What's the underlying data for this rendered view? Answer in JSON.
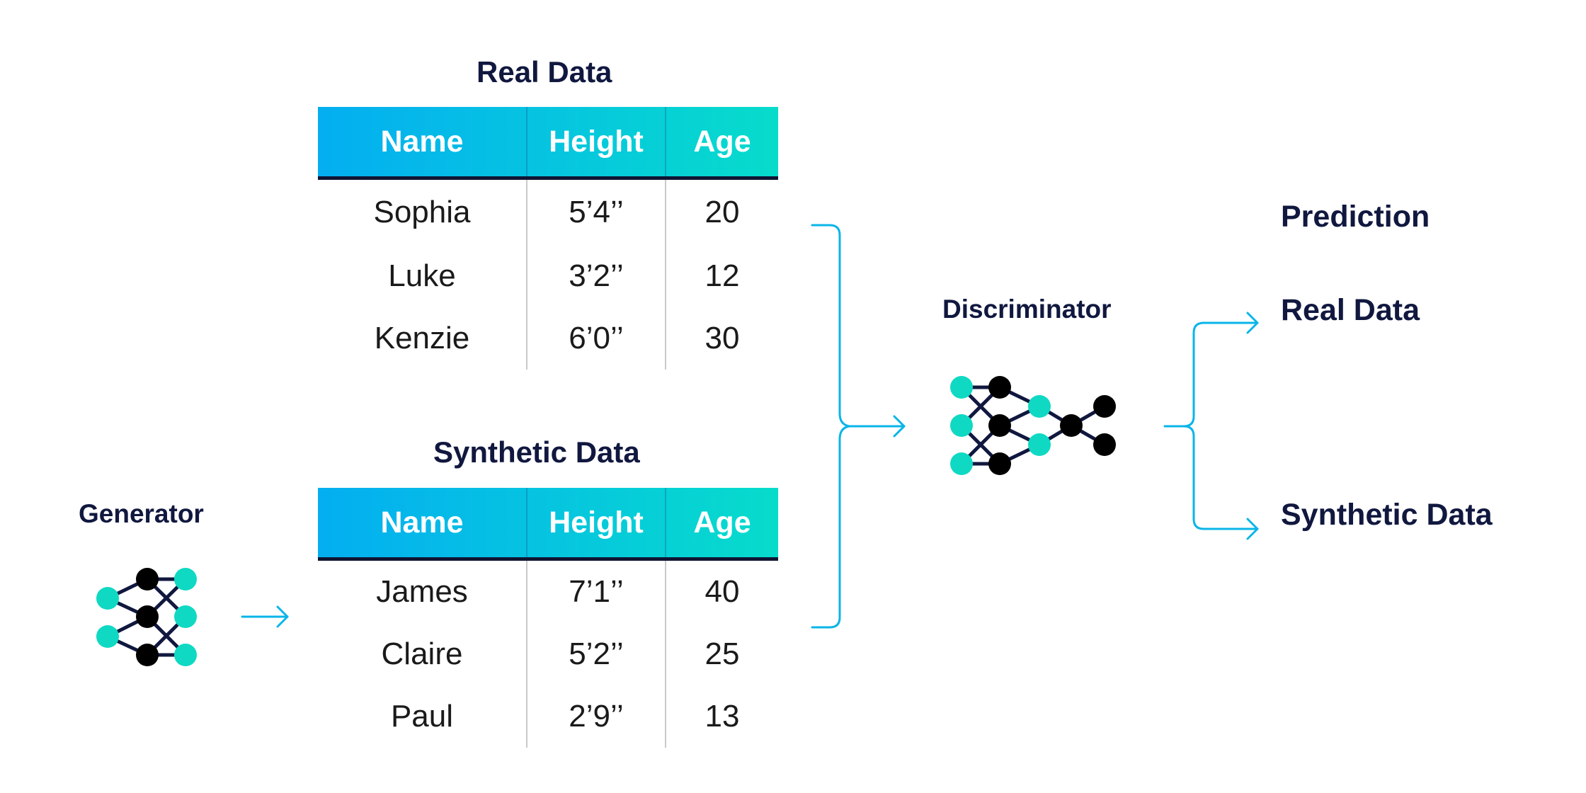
{
  "colors": {
    "accent": "#0ab5e8",
    "teal_node": "#0fd9c3",
    "dark_node": "#000000",
    "text_dark": "#11183f"
  },
  "real_table": {
    "title": "Real Data",
    "headers": [
      "Name",
      "Height",
      "Age"
    ],
    "rows": [
      [
        "Sophia",
        "5’4’’",
        "20"
      ],
      [
        "Luke",
        "3’2’’",
        "12"
      ],
      [
        "Kenzie",
        "6’0’’",
        "30"
      ]
    ]
  },
  "synthetic_table": {
    "title": "Synthetic Data",
    "headers": [
      "Name",
      "Height",
      "Age"
    ],
    "rows": [
      [
        "James",
        "7’1’’",
        "40"
      ],
      [
        "Claire",
        "5’2’’",
        "25"
      ],
      [
        "Paul",
        "2’9’’",
        "13"
      ]
    ]
  },
  "generator": {
    "label": "Generator",
    "icon": "neural-network-icon"
  },
  "discriminator": {
    "label": "Discriminator",
    "icon": "neural-network-icon"
  },
  "prediction": {
    "title": "Prediction",
    "outputs": [
      "Real Data",
      "Synthetic Data"
    ]
  }
}
